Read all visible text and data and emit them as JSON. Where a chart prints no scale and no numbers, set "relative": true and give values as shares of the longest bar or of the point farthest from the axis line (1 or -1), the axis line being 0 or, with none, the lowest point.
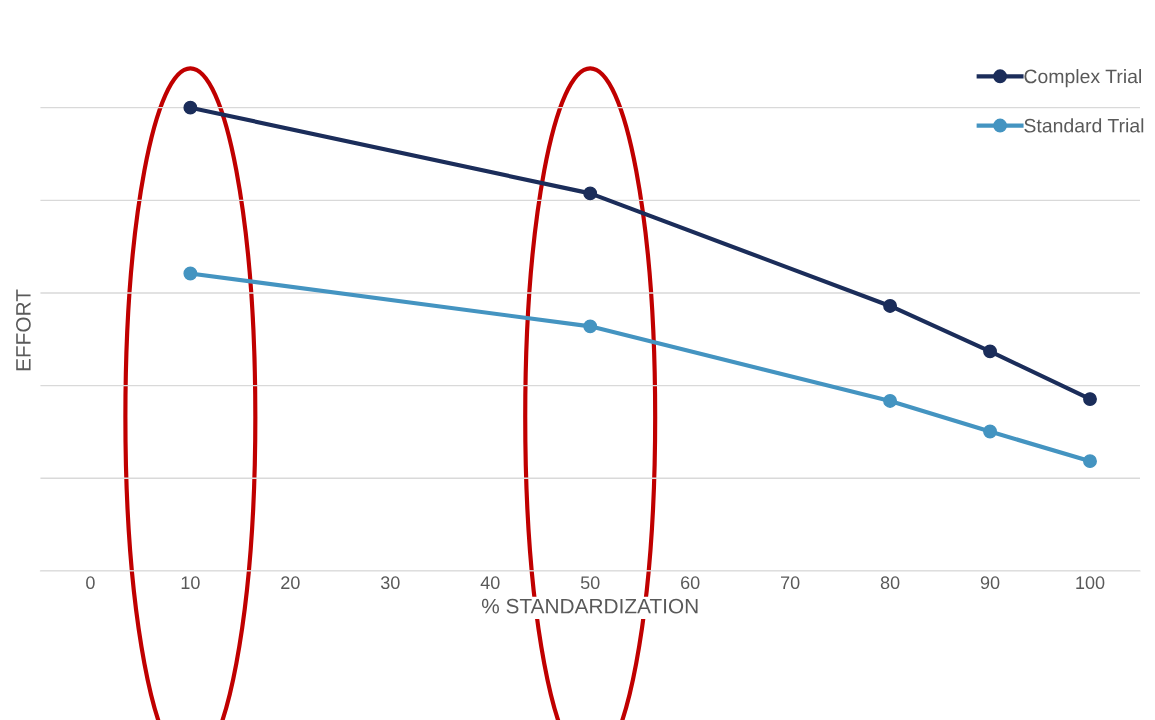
{
  "chart_data": {
    "type": "line",
    "relative": true,
    "xlabel": "% STANDARDIZATION",
    "ylabel": "EFFORT",
    "x": [
      10,
      50,
      80,
      90,
      100
    ],
    "xlim": [
      -5,
      105
    ],
    "xticks": [
      0,
      10,
      20,
      30,
      40,
      50,
      60,
      70,
      80,
      90,
      100
    ],
    "series": [
      {
        "name": "Complex Trial",
        "color": "#1b2d5a",
        "values": [
          1.0,
          0.815,
          0.572,
          0.474,
          0.371
        ]
      },
      {
        "name": "Standard Trial",
        "color": "#4494c1",
        "values": [
          0.642,
          0.528,
          0.367,
          0.301,
          0.237
        ]
      }
    ],
    "grid": "y",
    "legend": "top right",
    "marker": "circle",
    "line_style": "solid"
  }
}
